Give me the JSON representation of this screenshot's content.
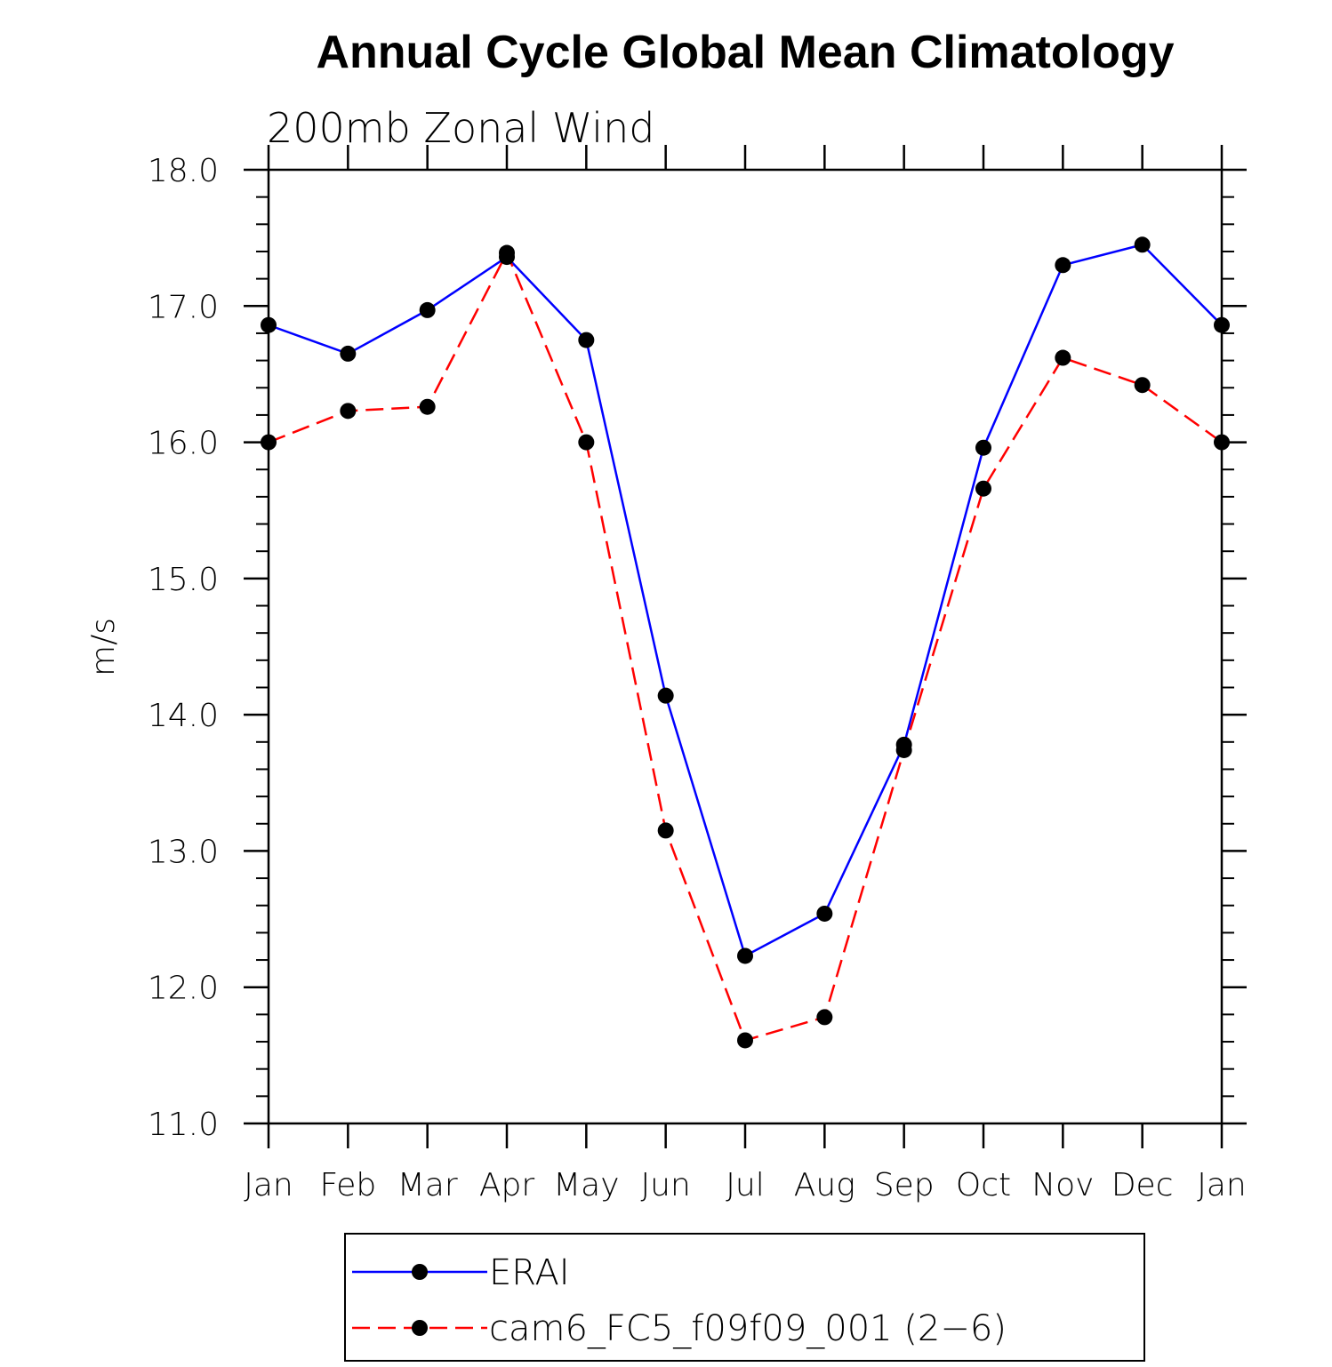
{
  "chart_data": {
    "type": "line",
    "title": "Annual Cycle Global Mean Climatology",
    "subtitle": "200mb Zonal Wind",
    "xlabel": "",
    "ylabel": "m/s",
    "categories": [
      "Jan",
      "Feb",
      "Mar",
      "Apr",
      "May",
      "Jun",
      "Jul",
      "Aug",
      "Sep",
      "Oct",
      "Nov",
      "Dec",
      "Jan"
    ],
    "ylim": [
      11.0,
      18.0
    ],
    "yticks": [
      "11.0",
      "12.0",
      "13.0",
      "14.0",
      "15.0",
      "16.0",
      "17.0",
      "18.0"
    ],
    "series": [
      {
        "name": "ERAI",
        "color": "#0000ff",
        "style": "solid",
        "values": [
          16.86,
          16.65,
          16.97,
          17.36,
          16.75,
          14.14,
          12.23,
          12.54,
          13.78,
          15.96,
          17.3,
          17.45,
          16.86
        ]
      },
      {
        "name": "cam6_FC5_f09f09_001 (2−6)",
        "color": "#ff0000",
        "style": "dashed",
        "values": [
          16.0,
          16.23,
          16.26,
          17.39,
          16.0,
          13.15,
          11.61,
          11.78,
          13.74,
          15.66,
          16.62,
          16.42,
          16.0
        ]
      }
    ],
    "grid": false,
    "legend_position": "bottom"
  }
}
